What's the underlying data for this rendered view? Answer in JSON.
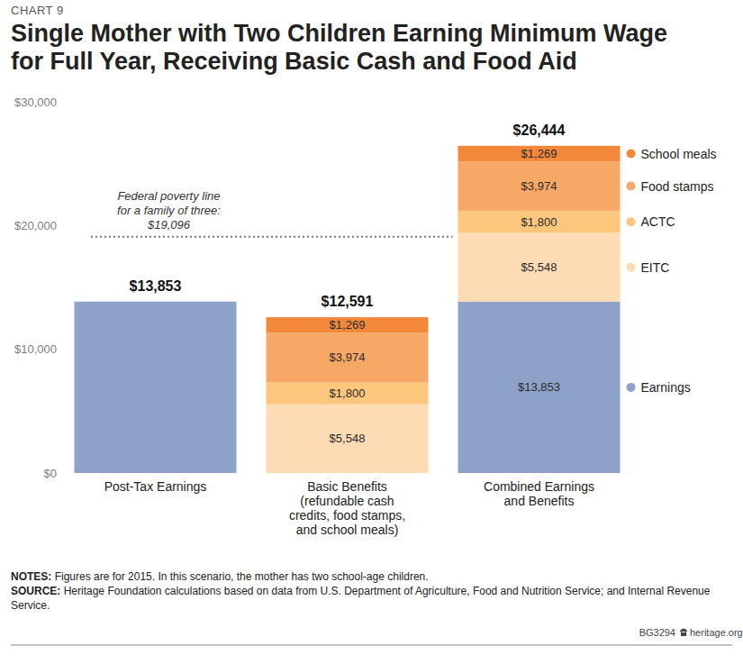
{
  "chart_data": {
    "type": "bar",
    "stacked": true,
    "data_labels": true,
    "grid": false,
    "legend": "right",
    "kicker": "CHART 9",
    "title": "Single Mother with Two Children Earning Minimum Wage for Full Year, Receiving Basic Cash and Food Aid",
    "categories": [
      "Post-Tax Earnings",
      "Basic Benefits (refundable cash credits, food stamps, and school meals)",
      "Combined Earnings and Benefits"
    ],
    "series": [
      {
        "name": "Earnings",
        "color": "#8ea2c9",
        "values": [
          13853,
          null,
          13853
        ],
        "value_labels": [
          null,
          null,
          "$13,853"
        ]
      },
      {
        "name": "EITC",
        "color": "#fddbb4",
        "values": [
          null,
          5548,
          5548
        ],
        "value_labels": [
          null,
          "$5,548",
          "$5,548"
        ]
      },
      {
        "name": "ACTC",
        "color": "#fcc67c",
        "values": [
          null,
          1800,
          1800
        ],
        "value_labels": [
          null,
          "$1,800",
          "$1,800"
        ]
      },
      {
        "name": "Food stamps",
        "color": "#f8a866",
        "values": [
          null,
          3974,
          3974
        ],
        "value_labels": [
          null,
          "$3,974",
          "$3,974"
        ]
      },
      {
        "name": "School meals",
        "color": "#f4883a",
        "values": [
          null,
          1269,
          1269
        ],
        "value_labels": [
          null,
          "$1,269",
          "$1,269"
        ]
      }
    ],
    "totals": [
      13853,
      12591,
      26444
    ],
    "total_labels": [
      "$13,853",
      "$12,591",
      "$26,444"
    ],
    "annotations": [
      {
        "y": 19096,
        "label": [
          "Federal poverty line",
          "for a family of three:",
          "$19,096"
        ]
      }
    ],
    "ylim": [
      0,
      30000
    ],
    "yticks": [
      {
        "value": 0,
        "label": "$0"
      },
      {
        "value": 10000,
        "label": "$10,000"
      },
      {
        "value": 20000,
        "label": "$20,000"
      },
      {
        "value": 30000,
        "label": "$30,000"
      }
    ],
    "notes_label": "NOTES:",
    "notes": "Figures are for 2015. In this scenario, the mother has two school-age children.",
    "source_label": "SOURCE:",
    "source": "Heritage Foundation calculations based on data from U.S. Department of Agriculture, Food and Nutrition Service; and Internal Revenue Service.",
    "footer": "BG3294",
    "site": "heritage.org"
  }
}
